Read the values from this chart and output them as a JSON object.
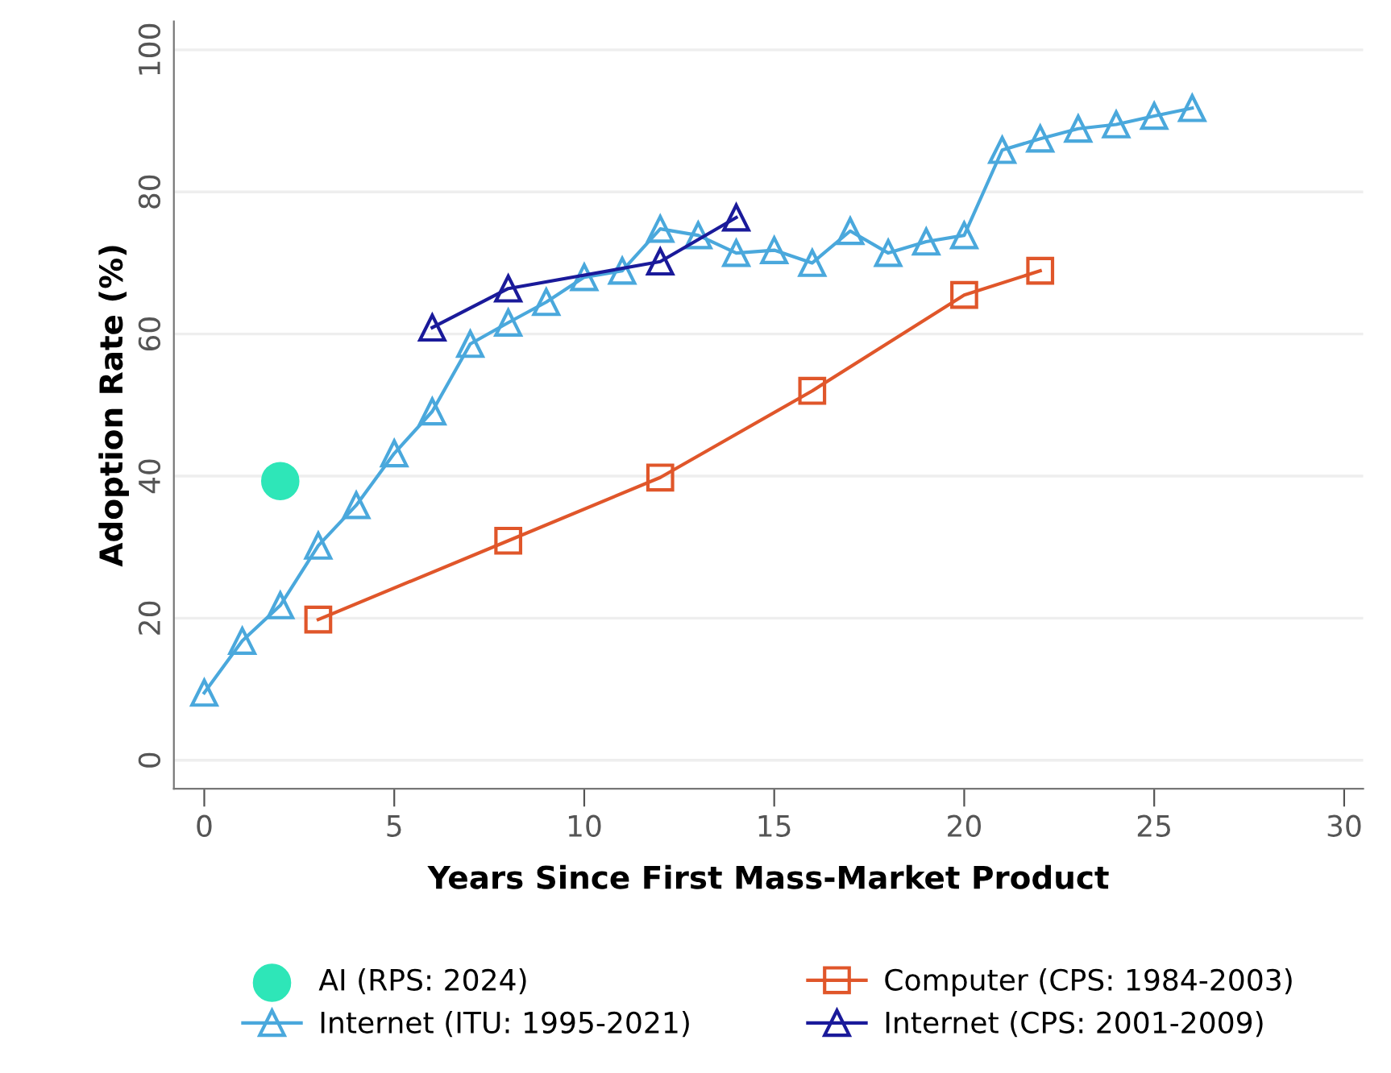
{
  "chart_data": {
    "type": "line",
    "xlabel": "Years Since First Mass-Market Product",
    "ylabel": "Adoption Rate (%)",
    "xlim": [
      -0.8,
      30.5
    ],
    "ylim": [
      -4,
      104
    ],
    "xticks": [
      0,
      5,
      10,
      15,
      20,
      25,
      30
    ],
    "yticks": [
      0,
      20,
      40,
      60,
      80,
      100
    ],
    "grid": "y",
    "legend": "bottom",
    "series": [
      {
        "name": "AI (RPS: 2024)",
        "type": "scatter",
        "marker": "circle",
        "color": "#2ee6b8",
        "x": [
          2
        ],
        "values": [
          39.3
        ]
      },
      {
        "name": "Internet (ITU: 1995-2021)",
        "marker": "triangle",
        "color": "#4aa8dc",
        "x": [
          0,
          1,
          2,
          3,
          4,
          5,
          6,
          7,
          8,
          9,
          10,
          11,
          12,
          13,
          14,
          15,
          16,
          17,
          18,
          19,
          20,
          21,
          22,
          23,
          24,
          25,
          26
        ],
        "values": [
          9.5,
          16.8,
          21.8,
          30.2,
          35.9,
          43.2,
          49.1,
          58.6,
          61.6,
          64.5,
          68,
          68.9,
          74.8,
          73.9,
          71.4,
          71.8,
          70,
          74.5,
          71.4,
          73,
          73.9,
          85.9,
          87.5,
          88.9,
          89.5,
          90.7,
          91.8
        ]
      },
      {
        "name": "Computer (CPS: 1984-2003)",
        "marker": "square",
        "color": "#e0562a",
        "x": [
          3,
          8,
          12,
          16,
          20,
          22
        ],
        "values": [
          19.8,
          30.9,
          39.8,
          52,
          65.5,
          68.9
        ]
      },
      {
        "name": "Internet (CPS: 2001-2009)",
        "marker": "triangle",
        "color": "#1a1a9a",
        "x": [
          6,
          8,
          12,
          14
        ],
        "values": [
          60.9,
          66.4,
          70.2,
          76.4
        ]
      }
    ]
  }
}
